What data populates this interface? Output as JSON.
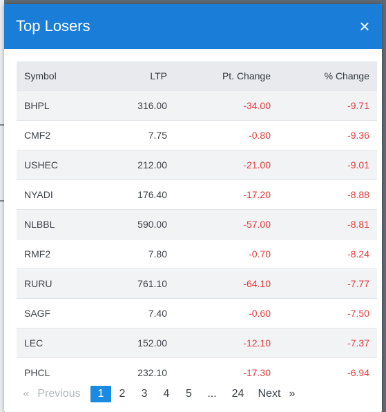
{
  "modal": {
    "title": "Top Losers",
    "close_glyph": "×",
    "header_color": "#1a7ed9"
  },
  "table": {
    "headers": {
      "symbol": "Symbol",
      "ltp": "LTP",
      "pt_change": "Pt. Change",
      "pct_change": "% Change"
    },
    "rows": [
      {
        "symbol": "BHPL",
        "ltp": "316.00",
        "pt_change": "-34.00",
        "pct_change": "-9.71"
      },
      {
        "symbol": "CMF2",
        "ltp": "7.75",
        "pt_change": "-0.80",
        "pct_change": "-9.36"
      },
      {
        "symbol": "USHEC",
        "ltp": "212.00",
        "pt_change": "-21.00",
        "pct_change": "-9.01"
      },
      {
        "symbol": "NYADI",
        "ltp": "176.40",
        "pt_change": "-17.20",
        "pct_change": "-8.88"
      },
      {
        "symbol": "NLBBL",
        "ltp": "590.00",
        "pt_change": "-57.00",
        "pct_change": "-8.81"
      },
      {
        "symbol": "RMF2",
        "ltp": "7.80",
        "pt_change": "-0.70",
        "pct_change": "-8.24"
      },
      {
        "symbol": "RURU",
        "ltp": "761.10",
        "pt_change": "-64.10",
        "pct_change": "-7.77"
      },
      {
        "symbol": "SAGF",
        "ltp": "7.40",
        "pt_change": "-0.60",
        "pct_change": "-7.50"
      },
      {
        "symbol": "LEC",
        "ltp": "152.00",
        "pt_change": "-12.10",
        "pct_change": "-7.37"
      },
      {
        "symbol": "PHCL",
        "ltp": "232.10",
        "pt_change": "-17.30",
        "pct_change": "-6.94"
      }
    ],
    "negative_color": "#e43a3a"
  },
  "pagination": {
    "prev_arrow": "«",
    "prev_label": "Previous",
    "pages": [
      "1",
      "2",
      "3",
      "4",
      "5",
      "...",
      "24"
    ],
    "active_page": "1",
    "next_label": "Next",
    "next_arrow": "»",
    "active_color": "#1a8be0"
  }
}
